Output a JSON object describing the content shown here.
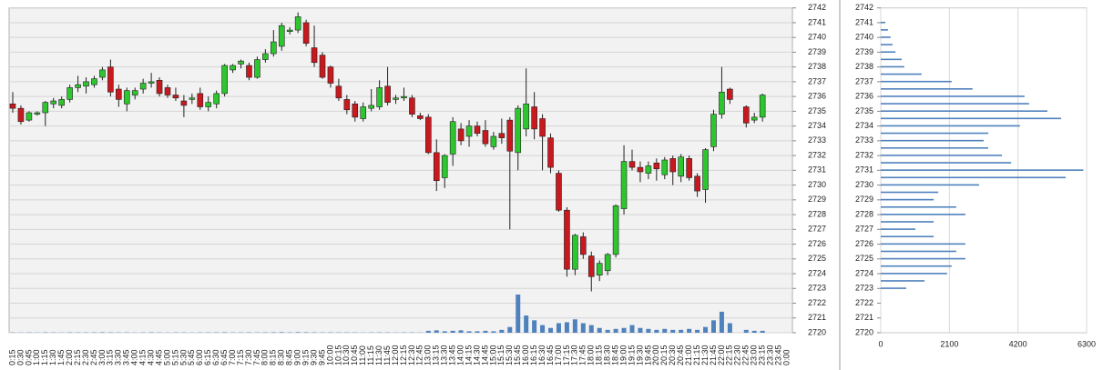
{
  "chart_data": [
    {
      "type": "candlestick",
      "categories": [
        "0:15",
        "0:30",
        "0:45",
        "1:00",
        "1:15",
        "1:30",
        "1:45",
        "2:00",
        "2:15",
        "2:30",
        "2:45",
        "3:00",
        "3:15",
        "3:30",
        "3:45",
        "4:00",
        "4:15",
        "4:30",
        "4:45",
        "5:00",
        "5:15",
        "5:30",
        "5:45",
        "6:00",
        "6:15",
        "6:30",
        "6:45",
        "7:00",
        "7:15",
        "7:30",
        "7:45",
        "8:00",
        "8:15",
        "8:30",
        "8:45",
        "9:00",
        "9:15",
        "9:30",
        "9:45",
        "10:00",
        "10:15",
        "10:30",
        "10:45",
        "11:00",
        "11:15",
        "11:30",
        "11:45",
        "12:00",
        "12:15",
        "12:30",
        "12:45",
        "13:00",
        "13:15",
        "13:30",
        "13:45",
        "14:00",
        "14:15",
        "14:30",
        "14:45",
        "15:00",
        "15:15",
        "15:30",
        "15:45",
        "16:00",
        "16:15",
        "16:30",
        "16:45",
        "17:00",
        "17:15",
        "17:30",
        "17:45",
        "18:00",
        "18:15",
        "18:30",
        "18:45",
        "19:00",
        "19:15",
        "19:30",
        "19:45",
        "20:00",
        "20:15",
        "20:30",
        "20:45",
        "21:00",
        "21:15",
        "21:30",
        "21:45",
        "22:00",
        "22:15",
        "22:30",
        "22:45",
        "23:00",
        "23:15",
        "23:30",
        "23:45",
        "0:00"
      ],
      "open": [
        2735.5,
        2735.2,
        2734.4,
        2734.8,
        2734.9,
        2735.5,
        2735.4,
        2735.8,
        2736.6,
        2736.7,
        2736.8,
        2737.3,
        2738.0,
        2736.5,
        2735.5,
        2736.1,
        2736.5,
        2736.9,
        2737.1,
        2736.6,
        2736.1,
        2735.7,
        2735.8,
        2736.2,
        2735.3,
        2735.5,
        2736.2,
        2737.8,
        2738.2,
        2738.1,
        2737.3,
        2738.5,
        2738.9,
        2739.4,
        2740.4,
        2740.5,
        2741.0,
        2739.3,
        2738.8,
        2738.0,
        2736.7,
        2735.8,
        2735.5,
        2734.5,
        2735.2,
        2735.3,
        2736.7,
        2735.8,
        2735.9,
        2735.9,
        2734.7,
        2734.6,
        2732.2,
        2730.5,
        2732.1,
        2733.8,
        2733.3,
        2734.0,
        2733.7,
        2732.6,
        2733.5,
        2734.4,
        2732.2,
        2733.8,
        2735.3,
        2734.5,
        2733.2,
        2730.8,
        2728.3,
        2724.3,
        2726.5,
        2725.2,
        2723.9,
        2724.2,
        2725.3,
        2728.4,
        2731.6,
        2731.2,
        2730.8,
        2731.5,
        2730.7,
        2731.8,
        2730.6,
        2731.8,
        2730.6,
        2729.7,
        2732.6,
        2734.8,
        2736.5,
        null,
        2735.3,
        2734.4,
        2734.6,
        null,
        null,
        null
      ],
      "high": [
        2736.3,
        2735.4,
        2735.0,
        2735.0,
        2735.7,
        2735.9,
        2736.0,
        2736.8,
        2737.4,
        2737.3,
        2737.4,
        2738.0,
        2738.5,
        2736.8,
        2736.6,
        2736.6,
        2737.2,
        2737.6,
        2737.3,
        2736.8,
        2736.6,
        2736.1,
        2736.2,
        2736.6,
        2736.0,
        2736.4,
        2738.2,
        2738.2,
        2738.5,
        2738.3,
        2738.7,
        2739.2,
        2740.5,
        2741.0,
        2740.7,
        2741.7,
        2741.2,
        2740.8,
        2739.0,
        2738.1,
        2737.2,
        2736.1,
        2735.7,
        2735.6,
        2736.5,
        2737.1,
        2738.0,
        2736.1,
        2736.6,
        2736.1,
        2734.9,
        2734.8,
        2733.1,
        2732.1,
        2734.6,
        2734.2,
        2734.4,
        2734.3,
        2734.4,
        2733.6,
        2734.5,
        2734.6,
        2735.4,
        2737.9,
        2736.3,
        2734.8,
        2733.5,
        2731.0,
        2728.5,
        2726.7,
        2726.8,
        2725.5,
        2724.9,
        2725.4,
        2728.7,
        2732.7,
        2732.4,
        2731.6,
        2731.6,
        2731.8,
        2731.9,
        2732.0,
        2732.1,
        2732.0,
        2730.8,
        2732.5,
        2735.1,
        2738.0,
        2736.6,
        null,
        2735.4,
        2734.9,
        2736.2,
        null,
        null,
        null
      ],
      "low": [
        2734.9,
        2734.1,
        2734.3,
        2734.7,
        2734.0,
        2735.2,
        2735.2,
        2735.6,
        2736.3,
        2736.2,
        2736.6,
        2737.1,
        2736.0,
        2735.3,
        2735.0,
        2735.8,
        2736.2,
        2736.6,
        2736.0,
        2735.9,
        2735.7,
        2734.6,
        2735.5,
        2735.1,
        2735.0,
        2735.2,
        2736.0,
        2737.6,
        2737.9,
        2737.1,
        2737.2,
        2738.3,
        2738.7,
        2739.1,
        2740.2,
        2740.3,
        2739.4,
        2738.0,
        2737.2,
        2736.6,
        2735.7,
        2734.8,
        2734.3,
        2734.3,
        2735.0,
        2735.1,
        2735.4,
        2735.5,
        2735.7,
        2734.6,
        2734.4,
        2732.1,
        2729.6,
        2729.8,
        2731.3,
        2732.7,
        2732.6,
        2733.3,
        2732.6,
        2732.4,
        2732.8,
        2727.0,
        2731.0,
        2733.3,
        2733.1,
        2731.0,
        2730.8,
        2728.2,
        2723.8,
        2723.9,
        2725.0,
        2722.8,
        2723.5,
        2723.9,
        2725.1,
        2728.0,
        2731.0,
        2730.2,
        2730.4,
        2730.3,
        2730.4,
        2730.0,
        2730.2,
        2730.3,
        2729.2,
        2728.8,
        2732.3,
        2734.5,
        2735.5,
        null,
        2733.9,
        2734.2,
        2734.3,
        null,
        null,
        null
      ],
      "close": [
        2735.2,
        2734.3,
        2734.9,
        2734.9,
        2735.6,
        2735.7,
        2735.8,
        2736.6,
        2736.8,
        2737.0,
        2737.2,
        2737.8,
        2736.3,
        2735.8,
        2736.4,
        2736.4,
        2736.9,
        2737.0,
        2736.2,
        2736.1,
        2735.9,
        2735.4,
        2735.9,
        2735.3,
        2735.6,
        2736.2,
        2738.1,
        2738.1,
        2738.4,
        2737.3,
        2738.5,
        2738.9,
        2739.7,
        2740.8,
        2740.5,
        2741.4,
        2739.6,
        2738.3,
        2737.3,
        2736.9,
        2735.9,
        2735.1,
        2734.6,
        2735.3,
        2735.4,
        2736.6,
        2735.6,
        2735.9,
        2736.0,
        2734.8,
        2734.5,
        2732.2,
        2730.3,
        2732.0,
        2734.3,
        2733.0,
        2734.0,
        2733.5,
        2732.8,
        2733.3,
        2733.2,
        2732.3,
        2735.2,
        2735.5,
        2733.8,
        2733.3,
        2731.2,
        2728.3,
        2724.3,
        2726.6,
        2725.3,
        2723.8,
        2724.7,
        2725.3,
        2728.6,
        2731.6,
        2731.2,
        2730.9,
        2731.3,
        2731.1,
        2731.7,
        2730.9,
        2731.9,
        2730.5,
        2729.6,
        2732.4,
        2734.8,
        2736.3,
        2735.8,
        null,
        2734.2,
        2734.6,
        2736.1,
        null,
        null,
        null
      ],
      "volume": [
        30,
        20,
        30,
        20,
        40,
        30,
        20,
        40,
        30,
        30,
        40,
        50,
        40,
        30,
        30,
        20,
        30,
        40,
        30,
        20,
        30,
        30,
        20,
        30,
        30,
        40,
        50,
        30,
        30,
        40,
        30,
        40,
        50,
        60,
        40,
        60,
        50,
        40,
        30,
        40,
        30,
        30,
        30,
        20,
        30,
        40,
        30,
        20,
        30,
        30,
        20,
        200,
        250,
        150,
        200,
        250,
        150,
        150,
        200,
        150,
        300,
        600,
        4000,
        1800,
        1300,
        800,
        500,
        1000,
        1100,
        1400,
        1000,
        800,
        500,
        300,
        400,
        500,
        800,
        500,
        400,
        300,
        400,
        300,
        300,
        400,
        300,
        600,
        1300,
        2200,
        1000,
        null,
        300,
        200,
        200,
        null,
        null,
        null
      ],
      "up_color": "#2ec62e",
      "down_color": "#c8191e",
      "volume_color": "#4f81bd",
      "ylim": [
        2720,
        2742
      ],
      "yticks": [
        2720,
        2721,
        2722,
        2723,
        2724,
        2725,
        2726,
        2727,
        2728,
        2729,
        2730,
        2731,
        2732,
        2733,
        2734,
        2735,
        2736,
        2737,
        2738,
        2739,
        2740,
        2741,
        2742
      ],
      "grid": true
    },
    {
      "type": "profile",
      "prices": [
        2741,
        2740.5,
        2740,
        2739.5,
        2739,
        2738.5,
        2738,
        2737.5,
        2737,
        2736.5,
        2736,
        2735.5,
        2735,
        2734.5,
        2734,
        2733.5,
        2733,
        2732.5,
        2732,
        2731.5,
        2731,
        2730.5,
        2730,
        2729.5,
        2729,
        2728.5,
        2728,
        2727.5,
        2727,
        2726.5,
        2726,
        2725.5,
        2725,
        2724.5,
        2724,
        2723.5,
        2723
      ],
      "values": [
        140,
        220,
        300,
        360,
        450,
        640,
        720,
        1250,
        2170,
        2810,
        4400,
        4540,
        5100,
        5520,
        4260,
        3290,
        3150,
        3290,
        3710,
        3990,
        6200,
        5660,
        3010,
        1760,
        1620,
        2310,
        2590,
        1620,
        1060,
        1620,
        2590,
        2310,
        2590,
        2170,
        2030,
        1340,
        780
      ],
      "color": "#4f81bd",
      "xlim": [
        0,
        6300
      ],
      "xticks": [
        0,
        2100,
        4200,
        6300
      ],
      "ylim": [
        2720,
        2742
      ],
      "yticks": [
        2720,
        2721,
        2722,
        2723,
        2724,
        2725,
        2726,
        2727,
        2728,
        2729,
        2730,
        2731,
        2732,
        2733,
        2734,
        2735,
        2736,
        2737,
        2738,
        2739,
        2740,
        2741,
        2742
      ],
      "grid": true
    }
  ]
}
